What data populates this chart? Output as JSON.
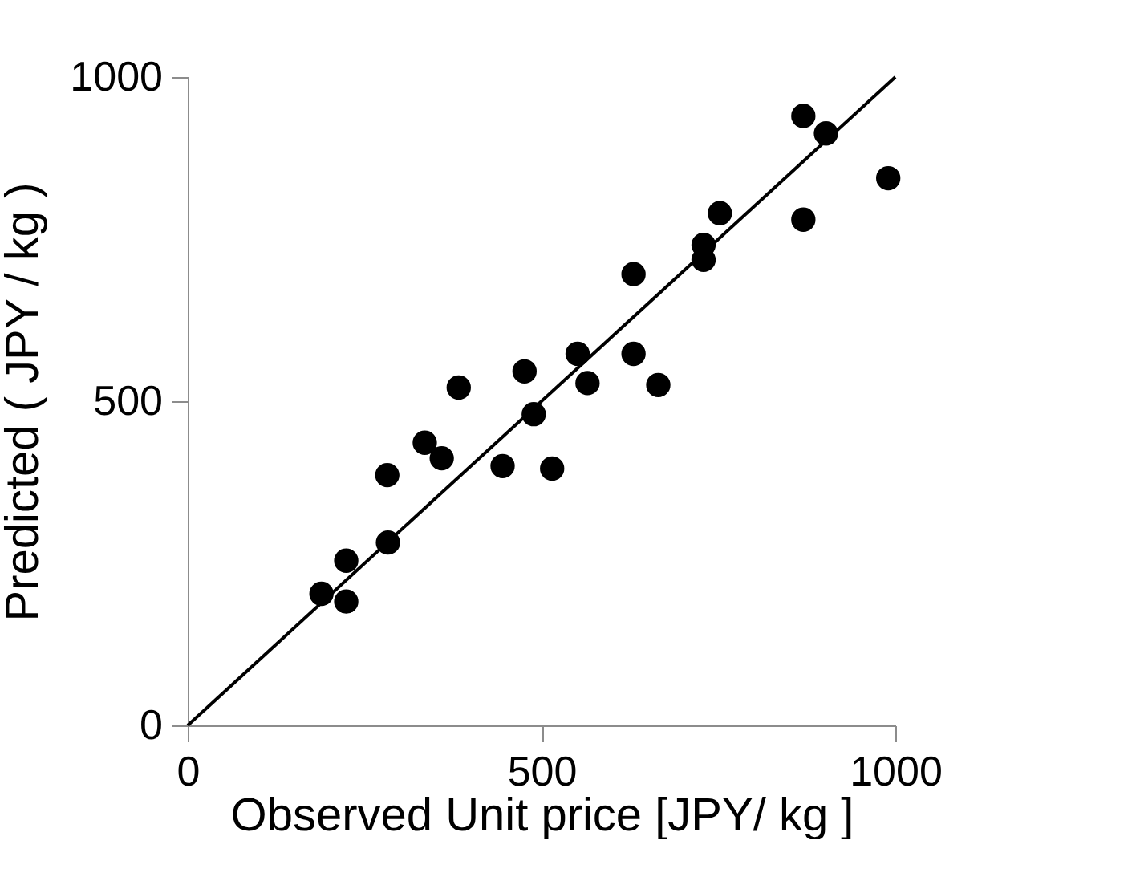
{
  "chart_data": {
    "type": "scatter",
    "xlabel": "Observed Unit price  [JPY/ kg ]",
    "ylabel": "Predicted ( JPY / kg )",
    "xlim": [
      0,
      1000
    ],
    "ylim": [
      0,
      1000
    ],
    "xticks": [
      0,
      500,
      1000
    ],
    "yticks": [
      0,
      500,
      1000
    ],
    "grid": false,
    "series": [
      {
        "color": "#000000",
        "marker": "circle",
        "x": [
          189,
          224,
          224,
          282,
          283,
          335,
          359,
          383,
          445,
          476,
          489,
          515,
          551,
          565,
          630,
          630,
          665,
          729,
          729,
          752,
          870,
          902,
          870,
          990
        ],
        "values": [
          203,
          254,
          191,
          386,
          282,
          436,
          412,
          521,
          400,
          546,
          480,
          396,
          573,
          528,
          696,
          573,
          525,
          741,
          718,
          790,
          940,
          913,
          780,
          844
        ]
      },
      {
        "type": "line",
        "color": "#000000",
        "x": [
          0,
          1000
        ],
        "values": [
          0,
          1000
        ],
        "marker": "none",
        "line_style": "solid"
      }
    ]
  }
}
